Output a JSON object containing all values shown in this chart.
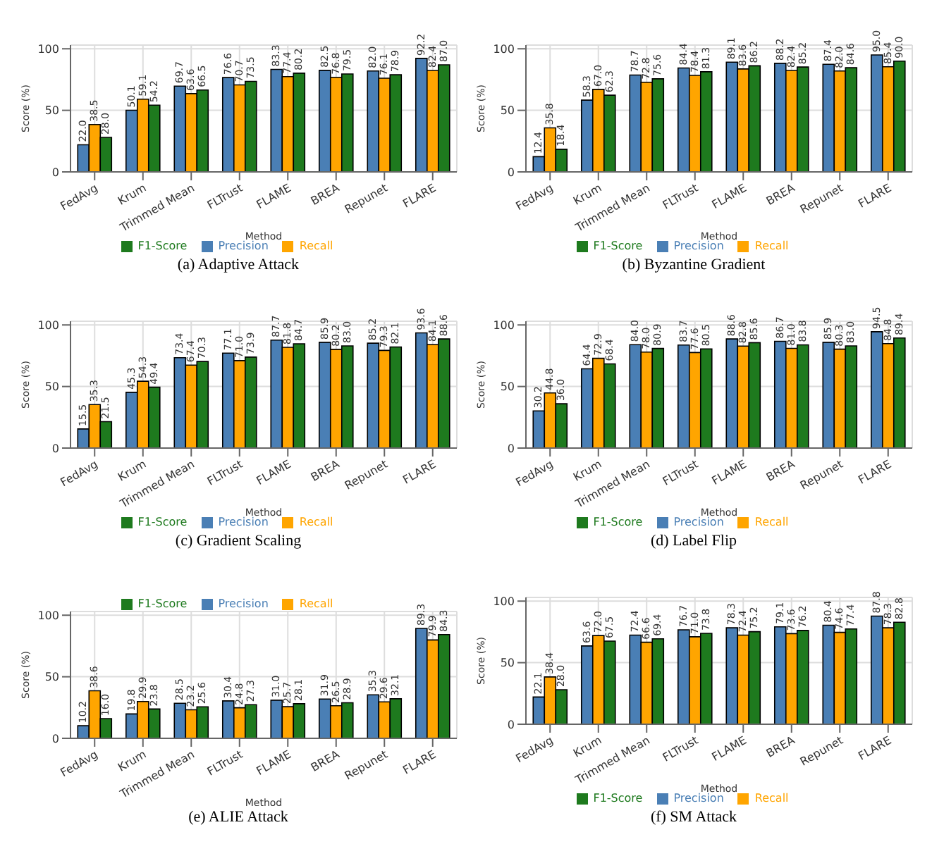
{
  "chart_data": [
    {
      "type": "bar",
      "title": "(a) Adaptive Attack",
      "xlabel": "Method",
      "ylabel": "Score (%)",
      "categories": [
        "FedAvg",
        "Krum",
        "Trimmed Mean",
        "FLTrust",
        "FLAME",
        "BREA",
        "Repunet",
        "FLARE"
      ],
      "ylim": [
        0,
        103
      ],
      "yticks": [
        0,
        50,
        100
      ],
      "grid": true,
      "legend": "bottom",
      "series": [
        {
          "name": "Precision",
          "color": "#4a7fb5",
          "values": [
            22.0,
            50.1,
            69.7,
            76.6,
            83.3,
            82.5,
            82.0,
            92.2
          ],
          "value_labels": [
            "22.0",
            "50.1",
            "69.7",
            "76.6",
            "83.3",
            "82.5",
            "82.0",
            "92.2"
          ]
        },
        {
          "name": "Recall",
          "color": "#ffa500",
          "values": [
            38.5,
            59.1,
            63.6,
            70.7,
            77.4,
            76.8,
            76.1,
            82.4
          ],
          "value_labels": [
            "38.5",
            "59.1",
            "63.6",
            "70.7",
            "77.4",
            "76.8",
            "76.1",
            "82.4"
          ]
        },
        {
          "name": "F1-Score",
          "color": "#1e7a1e",
          "values": [
            28.0,
            54.2,
            66.5,
            73.5,
            80.2,
            79.5,
            78.9,
            87.0
          ],
          "value_labels": [
            "28.0",
            "54.2",
            "66.5",
            "73.5",
            "80.2",
            "79.5",
            "78.9",
            "87.0"
          ]
        }
      ]
    },
    {
      "type": "bar",
      "title": "(b) Byzantine Gradient",
      "xlabel": "Method",
      "ylabel": "Score (%)",
      "categories": [
        "FedAvg",
        "Krum",
        "Trimmed Mean",
        "FLTrust",
        "FLAME",
        "BREA",
        "Repunet",
        "FLARE"
      ],
      "ylim": [
        0,
        103
      ],
      "yticks": [
        0,
        50,
        100
      ],
      "grid": true,
      "legend": "bottom",
      "series": [
        {
          "name": "Precision",
          "color": "#4a7fb5",
          "values": [
            12.4,
            58.3,
            78.7,
            84.4,
            89.1,
            88.2,
            87.4,
            95.0
          ],
          "value_labels": [
            "12.4",
            "58.3",
            "78.7",
            "84.4",
            "89.1",
            "88.2",
            "87.4",
            "95.0"
          ]
        },
        {
          "name": "Recall",
          "color": "#ffa500",
          "values": [
            35.8,
            67.0,
            72.8,
            78.4,
            83.6,
            82.4,
            82.0,
            85.4
          ],
          "value_labels": [
            "35.8",
            "67.0",
            "72.8",
            "78.4",
            "83.6",
            "82.4",
            "82.0",
            "85.4"
          ]
        },
        {
          "name": "F1-Score",
          "color": "#1e7a1e",
          "values": [
            18.4,
            62.3,
            75.6,
            81.3,
            86.2,
            85.2,
            84.6,
            90.0
          ],
          "value_labels": [
            "18.4",
            "62.3",
            "75.6",
            "81.3",
            "86.2",
            "85.2",
            "84.6",
            "90.0"
          ]
        }
      ]
    },
    {
      "type": "bar",
      "title": "(c) Gradient Scaling",
      "xlabel": "Method",
      "ylabel": "Score (%)",
      "categories": [
        "FedAvg",
        "Krum",
        "Trimmed Mean",
        "FLTrust",
        "FLAME",
        "BREA",
        "Repunet",
        "FLARE"
      ],
      "ylim": [
        0,
        103
      ],
      "yticks": [
        0,
        50,
        100
      ],
      "grid": true,
      "legend": "bottom",
      "series": [
        {
          "name": "Precision",
          "color": "#4a7fb5",
          "values": [
            15.5,
            45.3,
            73.4,
            77.1,
            87.7,
            85.9,
            85.2,
            93.6
          ],
          "value_labels": [
            "15.5",
            "45.3",
            "73.4",
            "77.1",
            "87.7",
            "85.9",
            "85.2",
            "93.6"
          ]
        },
        {
          "name": "Recall",
          "color": "#ffa500",
          "values": [
            35.3,
            54.3,
            67.4,
            71.0,
            81.8,
            80.2,
            79.3,
            84.1
          ],
          "value_labels": [
            "35.3",
            "54.3",
            "67.4",
            "71.0",
            "81.8",
            "80.2",
            "79.3",
            "84.1"
          ]
        },
        {
          "name": "F1-Score",
          "color": "#1e7a1e",
          "values": [
            21.5,
            49.4,
            70.3,
            73.9,
            84.7,
            83.0,
            82.1,
            88.6
          ],
          "value_labels": [
            "21.5",
            "49.4",
            "70.3",
            "73.9",
            "84.7",
            "83.0",
            "82.1",
            "88.6"
          ]
        }
      ]
    },
    {
      "type": "bar",
      "title": "(d) Label Flip",
      "xlabel": "Method",
      "ylabel": "Score (%)",
      "categories": [
        "FedAvg",
        "Krum",
        "Trimmed Mean",
        "FLTrust",
        "FLAME",
        "BREA",
        "Repunet",
        "FLARE"
      ],
      "ylim": [
        0,
        103
      ],
      "yticks": [
        0,
        50,
        100
      ],
      "grid": true,
      "legend": "bottom",
      "series": [
        {
          "name": "Precision",
          "color": "#4a7fb5",
          "values": [
            30.2,
            64.4,
            84.0,
            83.7,
            88.6,
            86.7,
            85.9,
            94.5
          ],
          "value_labels": [
            "30.2",
            "64.4",
            "84.0",
            "83.7",
            "88.6",
            "86.7",
            "85.9",
            "94.5"
          ]
        },
        {
          "name": "Recall",
          "color": "#ffa500",
          "values": [
            44.8,
            72.9,
            78.0,
            77.6,
            82.8,
            81.0,
            80.3,
            84.8
          ],
          "value_labels": [
            "44.8",
            "72.9",
            "78.0",
            "77.6",
            "82.8",
            "81.0",
            "80.3",
            "84.8"
          ]
        },
        {
          "name": "F1-Score",
          "color": "#1e7a1e",
          "values": [
            36.0,
            68.4,
            80.9,
            80.5,
            85.6,
            83.8,
            83.0,
            89.4
          ],
          "value_labels": [
            "36.0",
            "68.4",
            "80.9",
            "80.5",
            "85.6",
            "83.8",
            "83.0",
            "89.4"
          ]
        }
      ]
    },
    {
      "type": "bar",
      "title": "(e) ALIE Attack",
      "xlabel": "Method",
      "ylabel": "Score (%)",
      "categories": [
        "FedAvg",
        "Krum",
        "Trimmed Mean",
        "FLTrust",
        "FLAME",
        "BREA",
        "Repunet",
        "FLARE"
      ],
      "ylim": [
        0,
        103
      ],
      "yticks": [
        0,
        50,
        100
      ],
      "grid": true,
      "legend": "top",
      "series": [
        {
          "name": "Precision",
          "color": "#4a7fb5",
          "values": [
            10.2,
            19.8,
            28.5,
            30.4,
            31.0,
            31.9,
            35.3,
            89.3
          ],
          "value_labels": [
            "10.2",
            "19.8",
            "28.5",
            "30.4",
            "31.0",
            "31.9",
            "35.3",
            "89.3"
          ]
        },
        {
          "name": "Recall",
          "color": "#ffa500",
          "values": [
            38.6,
            29.9,
            23.2,
            24.8,
            25.7,
            26.5,
            29.6,
            79.9
          ],
          "value_labels": [
            "38.6",
            "29.9",
            "23.2",
            "24.8",
            "25.7",
            "26.5",
            "29.6",
            "79.9"
          ]
        },
        {
          "name": "F1-Score",
          "color": "#1e7a1e",
          "values": [
            16.0,
            23.8,
            25.6,
            27.3,
            28.1,
            28.9,
            32.1,
            84.3
          ],
          "value_labels": [
            "16.0",
            "23.8",
            "25.6",
            "27.3",
            "28.1",
            "28.9",
            "32.1",
            "84.3"
          ]
        }
      ]
    },
    {
      "type": "bar",
      "title": "(f) SM Attack",
      "xlabel": "Method",
      "ylabel": "Score (%)",
      "categories": [
        "FedAvg",
        "Krum",
        "Trimmed Mean",
        "FLTrust",
        "FLAME",
        "BREA",
        "Repunet",
        "FLARE"
      ],
      "ylim": [
        0,
        103
      ],
      "yticks": [
        0,
        50,
        100
      ],
      "grid": true,
      "legend": "bottom",
      "series": [
        {
          "name": "Precision",
          "color": "#4a7fb5",
          "values": [
            22.1,
            63.6,
            72.4,
            76.7,
            78.3,
            79.1,
            80.4,
            87.8
          ],
          "value_labels": [
            "22.1",
            "63.6",
            "72.4",
            "76.7",
            "78.3",
            "79.1",
            "80.4",
            "87.8"
          ]
        },
        {
          "name": "Recall",
          "color": "#ffa500",
          "values": [
            38.4,
            72.0,
            66.6,
            71.0,
            72.4,
            73.6,
            74.6,
            78.3
          ],
          "value_labels": [
            "38.4",
            "72.0",
            "66.6",
            "71.0",
            "72.4",
            "73.6",
            "74.6",
            "78.3"
          ]
        },
        {
          "name": "F1-Score",
          "color": "#1e7a1e",
          "values": [
            28.0,
            67.5,
            69.4,
            73.8,
            75.2,
            76.2,
            77.4,
            82.8
          ],
          "value_labels": [
            "28.0",
            "67.5",
            "69.4",
            "73.8",
            "75.2",
            "76.2",
            "77.4",
            "82.8"
          ]
        }
      ]
    }
  ]
}
